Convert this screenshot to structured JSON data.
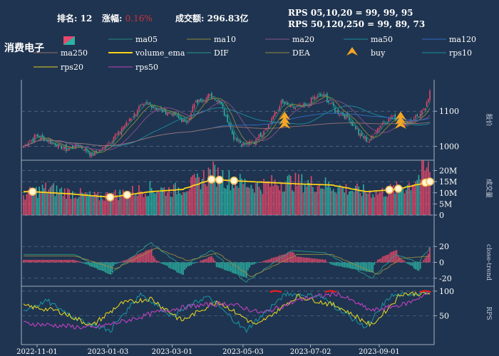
{
  "header": {
    "rank_label": "排名:",
    "rank_value": "12",
    "change_label": "涨幅:",
    "change_value": "0.16%",
    "turnover_label": "成交额:",
    "turnover_value": "296.83亿",
    "rps_line1": "RPS 05,10,20 = 99, 99, 95",
    "rps_line2": "RPS 50,120,250 = 99, 89, 73"
  },
  "sector_name": "消费电子",
  "colors": {
    "background": "#1f3450",
    "up": "#e8486a",
    "down": "#2bb3a3",
    "change_value": "#d1323c",
    "ma05": "#1f8a7a",
    "ma10": "#8c8c3a",
    "ma20": "#8f4f8f",
    "ma50": "#1a8fa0",
    "ma120": "#2f6fc4",
    "ma250": "#9a7070",
    "volume_ema": "#ffd21a",
    "DIF": "#2a9a8a",
    "DEA": "#9a8a40",
    "buy": "#f5a623",
    "rps10": "#1a8fa0",
    "rps20": "#e0d020",
    "rps50": "#c040c0"
  },
  "legend": {
    "items": [
      "ma05",
      "ma10",
      "ma20",
      "ma50",
      "ma120",
      "ma250",
      "volume_ema",
      "DIF",
      "DEA",
      "buy",
      "rps10",
      "rps20",
      "rps50"
    ]
  },
  "chart_data": [
    {
      "type": "candlestick",
      "panel": "price",
      "ylabel": "股价",
      "yticks": [
        1000,
        1100
      ],
      "ylim": [
        960,
        1190
      ],
      "x_dates": [
        "2022-11-01",
        "2023-01-03",
        "2023-03-01",
        "2023-05-03",
        "2023-07-02",
        "2023-09-01"
      ],
      "close_anchors": [
        {
          "date": "2022-10-20",
          "value": 1000
        },
        {
          "date": "2022-11-01",
          "value": 1030
        },
        {
          "date": "2022-11-15",
          "value": 1010
        },
        {
          "date": "2022-11-28",
          "value": 990
        },
        {
          "date": "2022-12-08",
          "value": 1005
        },
        {
          "date": "2022-12-20",
          "value": 975
        },
        {
          "date": "2022-12-30",
          "value": 995
        },
        {
          "date": "2023-01-13",
          "value": 1040
        },
        {
          "date": "2023-01-31",
          "value": 1110
        },
        {
          "date": "2023-02-08",
          "value": 1120
        },
        {
          "date": "2023-02-20",
          "value": 1100
        },
        {
          "date": "2023-03-01",
          "value": 1095
        },
        {
          "date": "2023-03-13",
          "value": 1065
        },
        {
          "date": "2023-03-22",
          "value": 1125
        },
        {
          "date": "2023-04-03",
          "value": 1145
        },
        {
          "date": "2023-04-12",
          "value": 1130
        },
        {
          "date": "2023-04-25",
          "value": 1025
        },
        {
          "date": "2023-05-03",
          "value": 1005
        },
        {
          "date": "2023-05-12",
          "value": 1010
        },
        {
          "date": "2023-05-25",
          "value": 1060
        },
        {
          "date": "2023-06-06",
          "value": 1125
        },
        {
          "date": "2023-06-16",
          "value": 1110
        },
        {
          "date": "2023-06-28",
          "value": 1115
        },
        {
          "date": "2023-07-05",
          "value": 1140
        },
        {
          "date": "2023-07-14",
          "value": 1145
        },
        {
          "date": "2023-07-24",
          "value": 1100
        },
        {
          "date": "2023-08-03",
          "value": 1085
        },
        {
          "date": "2023-08-15",
          "value": 1030
        },
        {
          "date": "2023-08-22",
          "value": 1015
        },
        {
          "date": "2023-09-01",
          "value": 1060
        },
        {
          "date": "2023-09-12",
          "value": 1085
        },
        {
          "date": "2023-09-22",
          "value": 1060
        },
        {
          "date": "2023-10-10",
          "value": 1100
        },
        {
          "date": "2023-10-16",
          "value": 1160
        }
      ],
      "buy_signals": [
        {
          "date": "2023-06-09",
          "value": 1085
        },
        {
          "date": "2023-06-09",
          "value": 1072
        },
        {
          "date": "2023-06-09",
          "value": 1060
        },
        {
          "date": "2023-09-20",
          "value": 1085
        },
        {
          "date": "2023-09-20",
          "value": 1072
        },
        {
          "date": "2023-09-20",
          "value": 1060
        }
      ]
    },
    {
      "type": "bar",
      "panel": "volume",
      "ylabel": "成交量",
      "yticks": [
        0,
        5,
        10,
        15,
        20
      ],
      "ytick_labels": [
        "0",
        "5M",
        "10M",
        "15M",
        "20M"
      ],
      "ylim": [
        0,
        24
      ],
      "volume_anchors": [
        {
          "date": "2022-10-20",
          "value": 9
        },
        {
          "date": "2022-11-10",
          "value": 12
        },
        {
          "date": "2022-12-01",
          "value": 10
        },
        {
          "date": "2022-12-25",
          "value": 8
        },
        {
          "date": "2023-01-20",
          "value": 10
        },
        {
          "date": "2023-02-10",
          "value": 12
        },
        {
          "date": "2023-03-01",
          "value": 11
        },
        {
          "date": "2023-03-20",
          "value": 14
        },
        {
          "date": "2023-04-05",
          "value": 19
        },
        {
          "date": "2023-04-20",
          "value": 16
        },
        {
          "date": "2023-05-15",
          "value": 13
        },
        {
          "date": "2023-06-10",
          "value": 15
        },
        {
          "date": "2023-07-10",
          "value": 14
        },
        {
          "date": "2023-08-10",
          "value": 11
        },
        {
          "date": "2023-09-01",
          "value": 10
        },
        {
          "date": "2023-09-25",
          "value": 13
        },
        {
          "date": "2023-10-16",
          "value": 22
        }
      ],
      "ema_anchors": [
        {
          "date": "2022-10-28",
          "value": 10.5
        },
        {
          "date": "2022-12-01",
          "value": 9.5
        },
        {
          "date": "2023-01-05",
          "value": 8
        },
        {
          "date": "2023-02-10",
          "value": 10.5
        },
        {
          "date": "2023-03-10",
          "value": 11.5
        },
        {
          "date": "2023-04-05",
          "value": 16
        },
        {
          "date": "2023-05-10",
          "value": 15
        },
        {
          "date": "2023-06-20",
          "value": 14
        },
        {
          "date": "2023-07-20",
          "value": 13.5
        },
        {
          "date": "2023-08-20",
          "value": 10.5
        },
        {
          "date": "2023-09-15",
          "value": 11.5
        },
        {
          "date": "2023-10-16",
          "value": 15
        }
      ]
    },
    {
      "type": "bar",
      "panel": "macd",
      "ylabel": "close-trend",
      "yticks": [
        -20,
        0,
        20
      ],
      "ylim": [
        -30,
        30
      ],
      "dif_anchors": [
        {
          "date": "2022-12-05",
          "value": 10
        },
        {
          "date": "2023-01-05",
          "value": -15
        },
        {
          "date": "2023-02-10",
          "value": 25
        },
        {
          "date": "2023-03-10",
          "value": -5
        },
        {
          "date": "2023-04-05",
          "value": 15
        },
        {
          "date": "2023-05-05",
          "value": -25
        },
        {
          "date": "2023-06-15",
          "value": 15
        },
        {
          "date": "2023-07-15",
          "value": 12
        },
        {
          "date": "2023-08-25",
          "value": -20
        },
        {
          "date": "2023-09-15",
          "value": 10
        },
        {
          "date": "2023-10-05",
          "value": 0
        },
        {
          "date": "2023-10-16",
          "value": 20
        }
      ],
      "dea_anchors": [
        {
          "date": "2022-12-05",
          "value": 8
        },
        {
          "date": "2023-01-10",
          "value": -8
        },
        {
          "date": "2023-02-15",
          "value": 18
        },
        {
          "date": "2023-03-15",
          "value": 2
        },
        {
          "date": "2023-04-10",
          "value": 12
        },
        {
          "date": "2023-05-10",
          "value": -18
        },
        {
          "date": "2023-06-20",
          "value": 10
        },
        {
          "date": "2023-07-20",
          "value": 10
        },
        {
          "date": "2023-08-30",
          "value": -15
        },
        {
          "date": "2023-09-20",
          "value": 5
        },
        {
          "date": "2023-10-16",
          "value": 8
        }
      ]
    },
    {
      "type": "line",
      "panel": "rps",
      "ylabel": "RPS",
      "yticks": [
        50,
        100
      ],
      "ylim": [
        0,
        110
      ],
      "series": [
        {
          "name": "rps10",
          "anchors": [
            {
              "date": "2022-10-20",
              "value": 60
            },
            {
              "date": "2022-11-10",
              "value": 80
            },
            {
              "date": "2022-12-10",
              "value": 40
            },
            {
              "date": "2023-01-05",
              "value": 20
            },
            {
              "date": "2023-02-01",
              "value": 95
            },
            {
              "date": "2023-03-01",
              "value": 50
            },
            {
              "date": "2023-04-01",
              "value": 90
            },
            {
              "date": "2023-05-05",
              "value": 20
            },
            {
              "date": "2023-06-10",
              "value": 95
            },
            {
              "date": "2023-07-10",
              "value": 90
            },
            {
              "date": "2023-08-20",
              "value": 25
            },
            {
              "date": "2023-09-10",
              "value": 90
            },
            {
              "date": "2023-10-16",
              "value": 99
            }
          ]
        },
        {
          "name": "rps20",
          "anchors": [
            {
              "date": "2022-10-20",
              "value": 70
            },
            {
              "date": "2022-11-20",
              "value": 60
            },
            {
              "date": "2022-12-20",
              "value": 30
            },
            {
              "date": "2023-01-15",
              "value": 75
            },
            {
              "date": "2023-02-10",
              "value": 85
            },
            {
              "date": "2023-03-10",
              "value": 40
            },
            {
              "date": "2023-04-10",
              "value": 80
            },
            {
              "date": "2023-05-15",
              "value": 30
            },
            {
              "date": "2023-06-20",
              "value": 90
            },
            {
              "date": "2023-07-25",
              "value": 70
            },
            {
              "date": "2023-08-25",
              "value": 30
            },
            {
              "date": "2023-09-20",
              "value": 95
            },
            {
              "date": "2023-10-16",
              "value": 95
            }
          ]
        },
        {
          "name": "rps50",
          "anchors": [
            {
              "date": "2022-10-20",
              "value": 35
            },
            {
              "date": "2022-11-20",
              "value": 30
            },
            {
              "date": "2022-12-20",
              "value": 25
            },
            {
              "date": "2023-01-20",
              "value": 40
            },
            {
              "date": "2023-02-20",
              "value": 60
            },
            {
              "date": "2023-03-20",
              "value": 70
            },
            {
              "date": "2023-04-20",
              "value": 75
            },
            {
              "date": "2023-05-20",
              "value": 55
            },
            {
              "date": "2023-06-25",
              "value": 85
            },
            {
              "date": "2023-07-25",
              "value": 95
            },
            {
              "date": "2023-08-25",
              "value": 60
            },
            {
              "date": "2023-09-25",
              "value": 75
            },
            {
              "date": "2023-10-16",
              "value": 99
            }
          ]
        }
      ]
    }
  ]
}
